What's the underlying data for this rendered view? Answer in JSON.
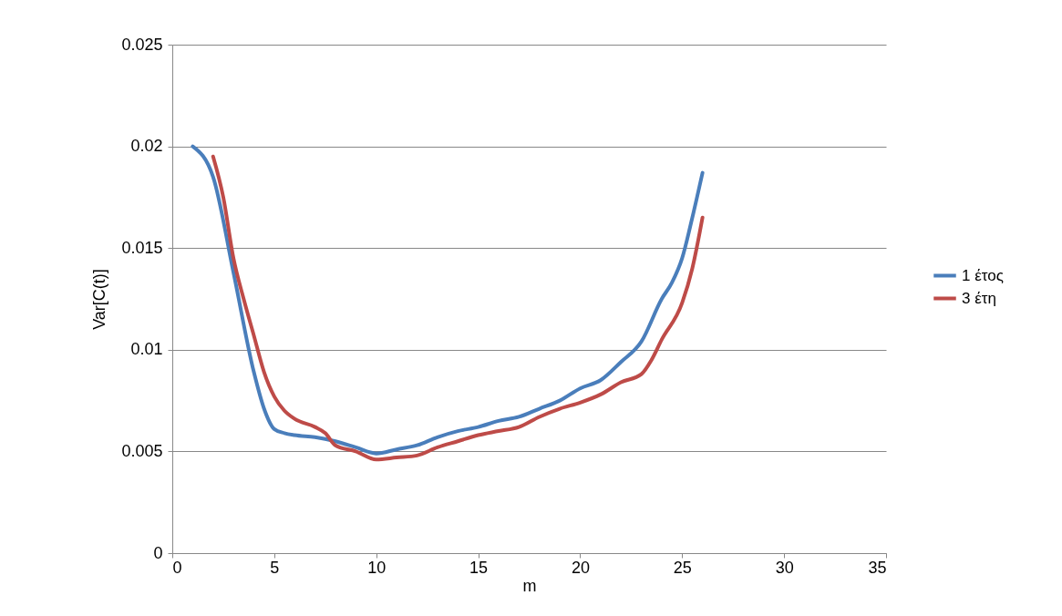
{
  "chart_data": {
    "type": "line",
    "xlabel": "m",
    "ylabel": "Var[C(t)]",
    "xlim": [
      0,
      35
    ],
    "xticks": [
      0,
      5,
      10,
      15,
      20,
      25,
      30,
      35
    ],
    "ylim": [
      0,
      0.025
    ],
    "yticks": [
      0,
      0.005,
      0.01,
      0.015,
      0.02,
      0.025
    ],
    "grid": "y",
    "legend": "right",
    "marker": "none",
    "line_style": "solid",
    "series": [
      {
        "name": "1 έτος",
        "color": "#4a7ebb",
        "x": [
          1,
          2,
          3,
          4,
          4.5,
          5,
          5.5,
          6,
          7,
          8,
          9,
          10,
          11,
          12,
          13,
          14,
          15,
          16,
          17,
          18,
          19,
          20,
          21,
          22,
          23,
          24,
          24.5,
          25,
          25.5,
          26
        ],
        "values": [
          0.02,
          0.0185,
          0.0138,
          0.0089,
          0.0071,
          0.0061,
          0.0059,
          0.0058,
          0.0057,
          0.0055,
          0.0052,
          0.0049,
          0.0051,
          0.0053,
          0.0057,
          0.006,
          0.0062,
          0.0065,
          0.0067,
          0.0071,
          0.0075,
          0.0081,
          0.0085,
          0.0094,
          0.0104,
          0.0125,
          0.0133,
          0.0145,
          0.0165,
          0.0187
        ]
      },
      {
        "name": "3 έτη",
        "color": "#be4b48",
        "x": [
          2,
          2.5,
          3,
          3.5,
          4,
          4.5,
          5,
          5.5,
          6,
          7,
          7.5,
          8,
          9,
          10,
          11,
          12,
          13,
          14,
          15,
          16,
          17,
          18,
          19,
          20,
          21,
          22,
          23,
          23.5,
          24,
          25,
          25.5,
          26
        ],
        "values": [
          0.0195,
          0.0175,
          0.0145,
          0.0125,
          0.0107,
          0.0089,
          0.0077,
          0.007,
          0.0066,
          0.0062,
          0.0059,
          0.0053,
          0.005,
          0.0046,
          0.0047,
          0.0048,
          0.0052,
          0.0055,
          0.0058,
          0.006,
          0.0062,
          0.0067,
          0.0071,
          0.0074,
          0.0078,
          0.0084,
          0.0088,
          0.0095,
          0.0105,
          0.0123,
          0.014,
          0.0165
        ]
      }
    ]
  }
}
